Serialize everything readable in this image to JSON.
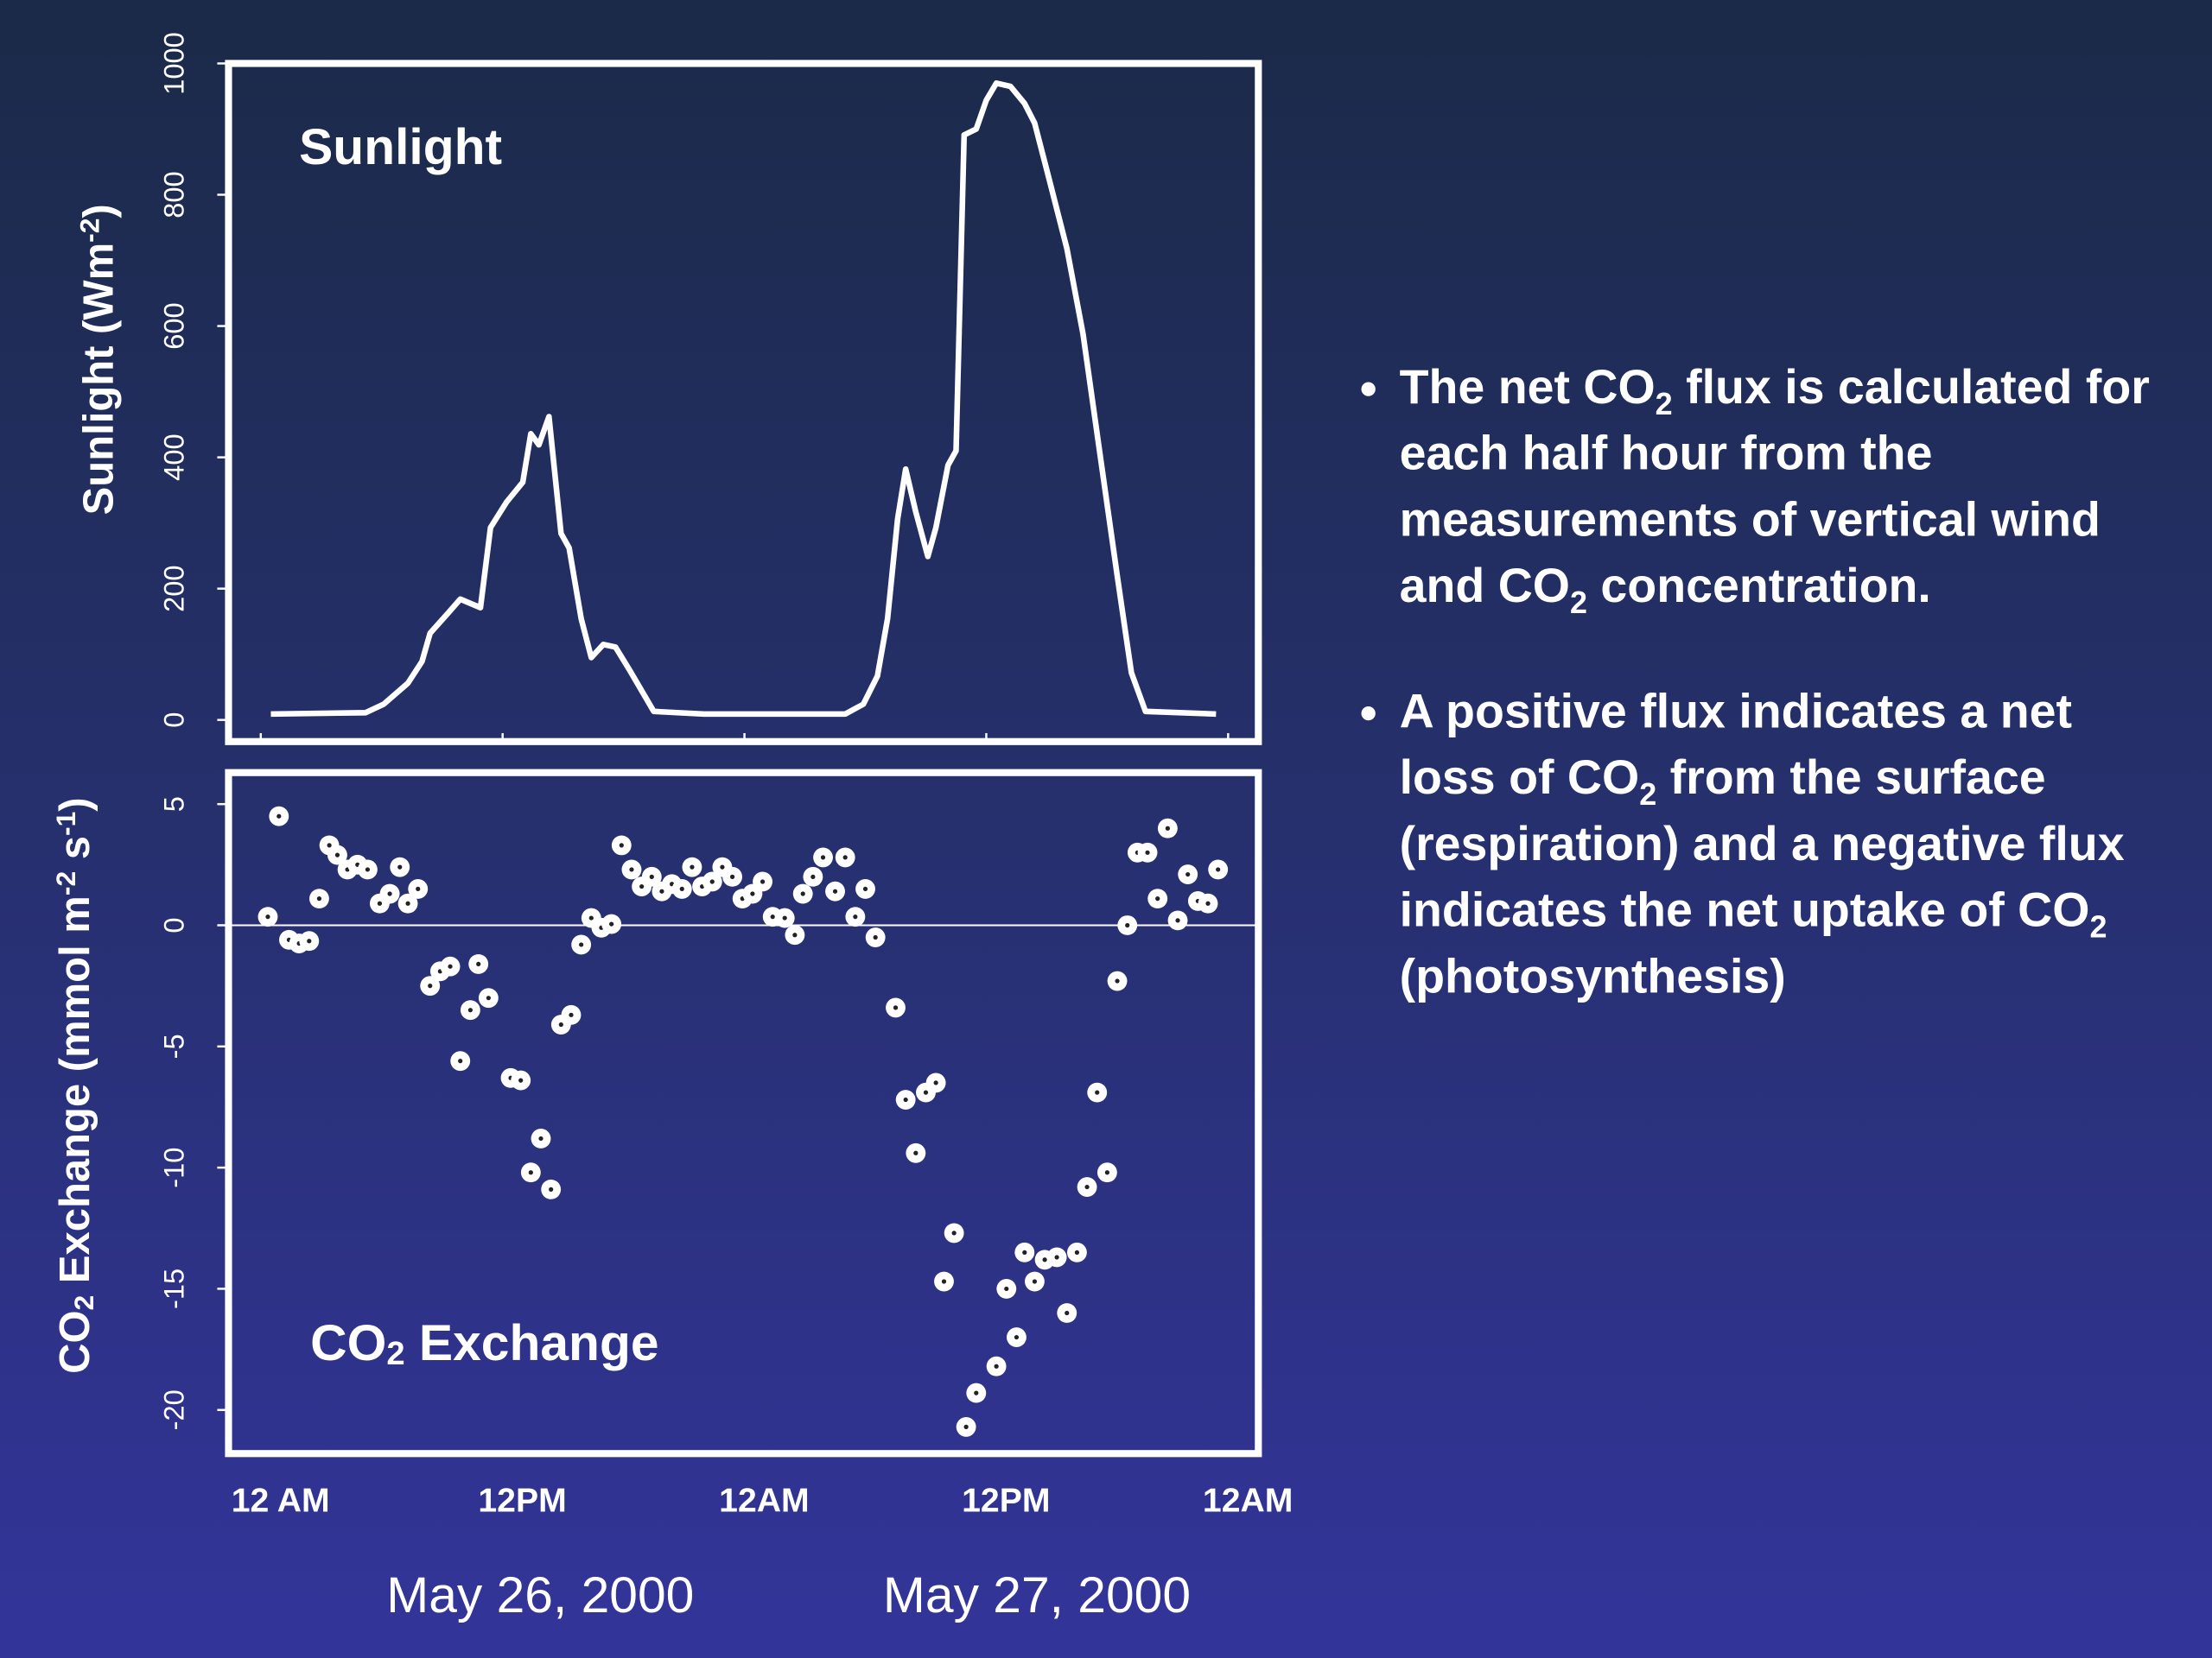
{
  "chart_data": [
    {
      "type": "line",
      "title": "Sunlight",
      "color": "#ffffff",
      "y_label": [
        {
          "text": "Sunlight (Wm"
        },
        {
          "sup": "-2"
        },
        {
          "text": ")"
        }
      ],
      "x": [
        0.5,
        5.2,
        6.1,
        7.3,
        8.0,
        8.4,
        9.3,
        9.9,
        10.9,
        11.4,
        12.2,
        13.0,
        13.4,
        13.8,
        14.3,
        14.9,
        15.3,
        15.9,
        16.4,
        17.0,
        17.6,
        18.3,
        19.5,
        22.0,
        29.0,
        29.9,
        30.6,
        31.1,
        31.6,
        32.0,
        32.5,
        33.1,
        33.5,
        34.1,
        34.5,
        34.9,
        35.5,
        36.0,
        36.5,
        37.2,
        37.9,
        38.4,
        39.1,
        40.0,
        40.8,
        41.6,
        42.5,
        43.2,
        43.9,
        47.4
      ],
      "values": [
        9,
        11,
        24,
        56,
        89,
        132,
        163,
        184,
        171,
        293,
        332,
        362,
        436,
        419,
        462,
        284,
        262,
        154,
        95,
        115,
        111,
        76,
        13,
        9,
        9,
        24,
        67,
        154,
        306,
        382,
        317,
        249,
        293,
        388,
        410,
        891,
        900,
        944,
        970,
        965,
        939,
        909,
        826,
        718,
        588,
        414,
        219,
        72,
        13,
        9
      ],
      "xlim": [
        -1.6,
        49.5
      ],
      "ylim": [
        -33,
        1000
      ],
      "yticks": [
        0,
        200,
        400,
        600,
        800,
        1000
      ]
    },
    {
      "type": "scatter",
      "color": "#ffffff",
      "title": [
        {
          "text": "CO"
        },
        {
          "sub": "2"
        },
        {
          "text": " Exchange"
        }
      ],
      "y_label": [
        {
          "text": "CO"
        },
        {
          "sub": "2"
        },
        {
          "text": " Exchange (mmol m"
        },
        {
          "sup": "-2"
        },
        {
          "text": " s"
        },
        {
          "sup": "-1"
        },
        {
          "text": ")"
        }
      ],
      "x": [
        0.35,
        0.9,
        1.4,
        1.9,
        2.4,
        2.9,
        3.4,
        3.8,
        4.3,
        4.8,
        5.3,
        5.9,
        6.4,
        6.9,
        7.3,
        7.8,
        8.4,
        8.9,
        9.4,
        9.9,
        10.4,
        10.8,
        11.3,
        12.4,
        12.9,
        13.4,
        13.9,
        14.4,
        14.9,
        15.4,
        15.9,
        16.4,
        16.9,
        17.4,
        17.9,
        18.4,
        18.9,
        19.4,
        19.9,
        20.4,
        20.9,
        21.4,
        21.9,
        22.4,
        22.9,
        23.4,
        23.9,
        24.4,
        24.9,
        25.4,
        26.0,
        26.5,
        26.9,
        27.4,
        27.9,
        28.5,
        29.0,
        29.5,
        30.0,
        30.5,
        31.5,
        32.0,
        32.5,
        33.0,
        33.5,
        33.9,
        34.4,
        35.0,
        35.5,
        36.5,
        37.0,
        37.5,
        37.9,
        38.4,
        38.9,
        39.5,
        40.0,
        40.5,
        41.0,
        41.5,
        42.0,
        42.5,
        43.0,
        43.5,
        44.0,
        44.5,
        45.0,
        45.5,
        46.0,
        46.5,
        47.0,
        47.5
      ],
      "values": [
        0.35,
        4.5,
        -0.6,
        -0.75,
        -0.65,
        1.1,
        3.3,
        2.9,
        2.3,
        2.5,
        2.3,
        0.9,
        1.3,
        2.4,
        0.9,
        1.5,
        -2.5,
        -1.9,
        -1.7,
        -5.6,
        -3.5,
        -1.6,
        -3.0,
        -6.3,
        -6.4,
        -10.2,
        -8.8,
        -10.9,
        -4.1,
        -3.7,
        -0.8,
        0.3,
        -0.1,
        0.05,
        3.3,
        2.3,
        1.6,
        2.0,
        1.4,
        1.7,
        1.5,
        2.4,
        1.6,
        1.8,
        2.4,
        2.0,
        1.1,
        1.3,
        1.8,
        0.35,
        0.3,
        -0.4,
        1.3,
        2.0,
        2.8,
        1.4,
        2.8,
        0.35,
        1.5,
        -0.5,
        -3.4,
        -7.2,
        -9.4,
        -6.9,
        -6.5,
        -14.7,
        -12.7,
        -20.7,
        -19.3,
        -18.2,
        -15.0,
        -17.0,
        -13.5,
        -14.7,
        -13.8,
        -13.7,
        -16.0,
        -13.5,
        -10.8,
        -6.9,
        -10.2,
        -2.3,
        0,
        3.0,
        3.0,
        1.1,
        4.0,
        0.2,
        2.1,
        1.0,
        0.9,
        2.3
      ],
      "hline": 0,
      "xlim": [
        -1.6,
        49.5
      ],
      "ylim": [
        -21.8,
        6.3
      ],
      "yticks": [
        5,
        0,
        -5,
        -10,
        -15,
        -20
      ],
      "xticks": [
        {
          "value": 0,
          "label": "12 AM"
        },
        {
          "value": 12,
          "label": "12PM"
        },
        {
          "value": 24,
          "label": "12AM"
        },
        {
          "value": 36,
          "label": "12PM"
        },
        {
          "value": 48,
          "label": "12AM"
        }
      ]
    }
  ],
  "dates": [
    "May 26, 2000",
    "May 27, 2000"
  ],
  "bullets": [
    [
      {
        "text": "The net CO"
      },
      {
        "sub": "2"
      },
      {
        "text": " flux is calculated for each half hour from the measurements of vertical wind and CO"
      },
      {
        "sub": "2"
      },
      {
        "text": " concentration."
      }
    ],
    [
      {
        "text": "A positive flux indicates a net loss of CO"
      },
      {
        "sub": "2"
      },
      {
        "text": " from the surface (respiration) and a negative flux indicates the net uptake of CO"
      },
      {
        "sub": "2"
      },
      {
        "text": " (photosynthesis)"
      }
    ]
  ]
}
